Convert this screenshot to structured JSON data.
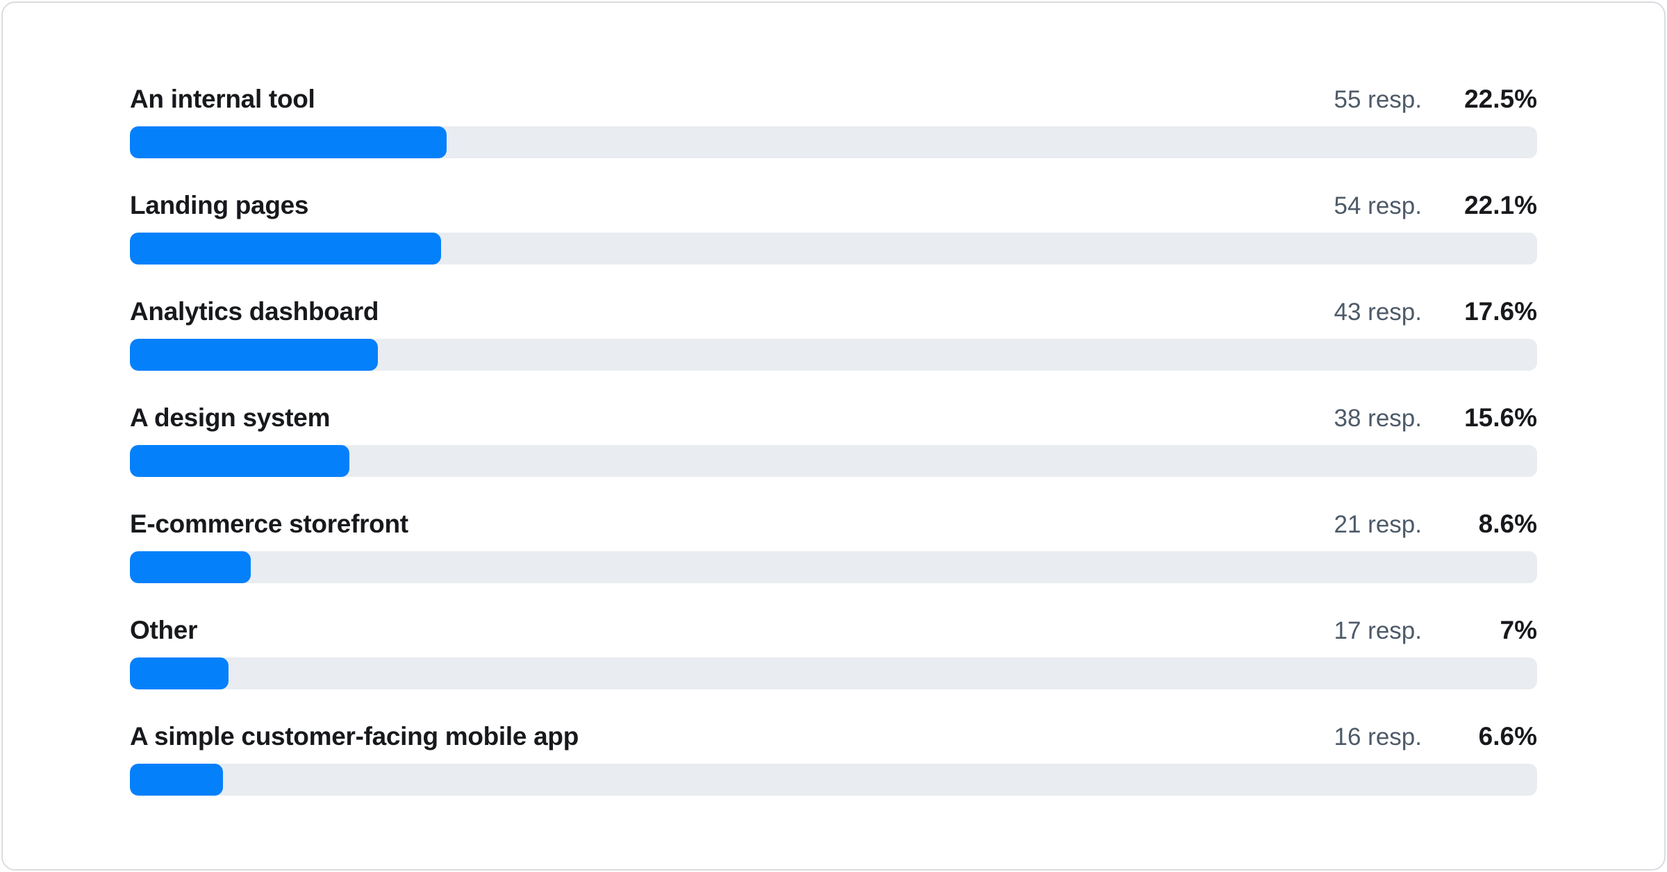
{
  "colors": {
    "accent_blue": "#0580FB",
    "track_gray": "#E9ECF0",
    "label_text": "#17191C",
    "count_text": "#4D5A68",
    "card_border": "#D9DCE0",
    "card_background": "#FFFFFF"
  },
  "rows": [
    {
      "label": "An internal tool",
      "responses": "55 resp.",
      "percent_label": "22.5%",
      "percent": 22.5
    },
    {
      "label": "Landing pages",
      "responses": "54 resp.",
      "percent_label": "22.1%",
      "percent": 22.1
    },
    {
      "label": "Analytics dashboard",
      "responses": "43 resp.",
      "percent_label": "17.6%",
      "percent": 17.6
    },
    {
      "label": "A design system",
      "responses": "38 resp.",
      "percent_label": "15.6%",
      "percent": 15.6
    },
    {
      "label": "E-commerce storefront",
      "responses": "21 resp.",
      "percent_label": "8.6%",
      "percent": 8.6
    },
    {
      "label": "Other",
      "responses": "17 resp.",
      "percent_label": "7%",
      "percent": 7
    },
    {
      "label": "A simple customer-facing mobile app",
      "responses": "16 resp.",
      "percent_label": "6.6%",
      "percent": 6.6
    }
  ],
  "chart_data": {
    "type": "bar",
    "orientation": "horizontal",
    "title": "",
    "xlabel": "",
    "ylabel": "",
    "categories": [
      "An internal tool",
      "Landing pages",
      "Analytics dashboard",
      "A design system",
      "E-commerce storefront",
      "Other",
      "A simple customer-facing mobile app"
    ],
    "series": [
      {
        "name": "Responses",
        "values": [
          55,
          54,
          43,
          38,
          21,
          17,
          16
        ]
      }
    ],
    "percent_values": [
      22.5,
      22.1,
      17.6,
      15.6,
      8.6,
      7,
      6.6
    ],
    "value_suffix": " resp.",
    "xlim": [
      0,
      100
    ],
    "grid": false,
    "legend": false,
    "bar_color": "#0580FB",
    "track_color": "#E9ECF0"
  }
}
